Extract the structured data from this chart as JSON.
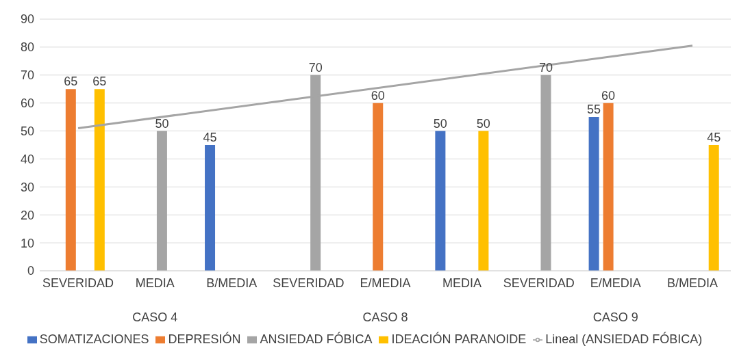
{
  "chart_data": {
    "type": "bar",
    "categories": [
      "SEVERIDAD",
      "MEDIA",
      "B/MEDIA",
      "SEVERIDAD",
      "E/MEDIA",
      "MEDIA",
      "SEVERIDAD",
      "E/MEDIA",
      "B/MEDIA"
    ],
    "annotations": [
      "CASO 4",
      "CASO 8",
      "CASO 9"
    ],
    "series": [
      {
        "name": "SOMATIZACIONES",
        "color": "#4472c4",
        "values": [
          null,
          null,
          45,
          null,
          null,
          50,
          null,
          55,
          null
        ],
        "value_labels": [
          null,
          null,
          "45",
          null,
          null,
          "50",
          null,
          "55",
          null
        ]
      },
      {
        "name": "DEPRESIÓN",
        "color": "#ed7d31",
        "values": [
          65,
          null,
          null,
          null,
          60,
          null,
          null,
          60,
          null
        ],
        "value_labels": [
          "65",
          null,
          null,
          null,
          "60",
          null,
          null,
          "60",
          null
        ]
      },
      {
        "name": "ANSIEDAD FÓBICA",
        "color": "#a5a5a5",
        "values": [
          null,
          50,
          null,
          70,
          null,
          null,
          70,
          null,
          null
        ],
        "value_labels": [
          null,
          "50",
          null,
          "70",
          null,
          null,
          "70",
          null,
          null
        ]
      },
      {
        "name": "IDEACIÓN PARANOIDE",
        "color": "#ffc000",
        "values": [
          65,
          null,
          null,
          null,
          null,
          50,
          null,
          null,
          45
        ],
        "value_labels": [
          "65",
          null,
          null,
          null,
          null,
          "50",
          null,
          null,
          "45"
        ]
      },
      {
        "name": "Lineal (ANSIEDAD FÓBICA)",
        "type": "line",
        "color": "#a5a5a5",
        "values": [
          51,
          null,
          null,
          null,
          null,
          null,
          null,
          null,
          80.5
        ]
      }
    ],
    "ylim": [
      0,
      90
    ],
    "yticks": [
      0,
      10,
      20,
      30,
      40,
      50,
      60,
      70,
      80,
      90
    ],
    "grid": "y",
    "legend": "bottom",
    "marker": "none"
  }
}
